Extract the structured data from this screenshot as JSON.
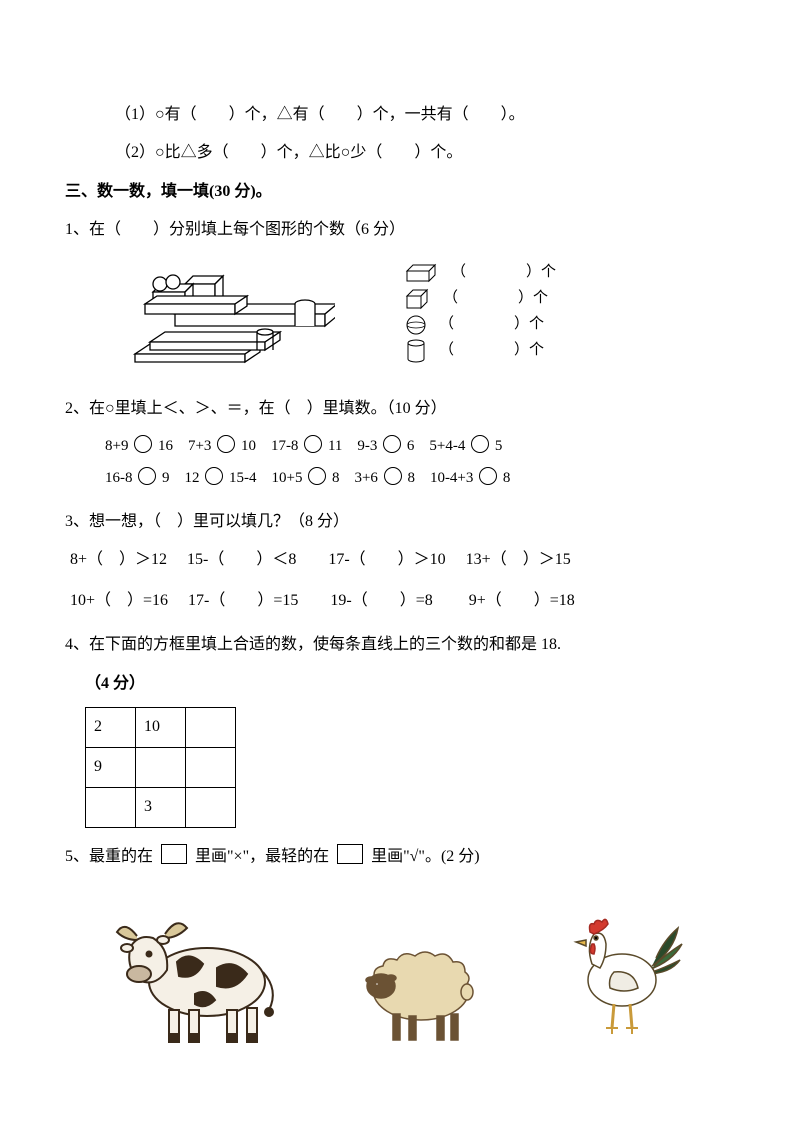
{
  "top": {
    "line1": "（1）○有（　　）个，△有（　　）个，一共有（　　）。",
    "line2": "（2）○比△多（　　）个，△比○少（　　）个。"
  },
  "section3": {
    "title": "三、数一数，填一填(30 分)。",
    "q1": {
      "text": "1、在（　　）分别填上每个图形的个数（6 分）",
      "shapes": [
        {
          "name": "cuboid-icon",
          "label": "（　　　　）个"
        },
        {
          "name": "cube-icon",
          "label": "（　　　　）个"
        },
        {
          "name": "sphere-icon",
          "label": "（　　　　）个"
        },
        {
          "name": "cylinder-icon",
          "label": "（　　　　）个"
        }
      ]
    },
    "q2": {
      "text": "2、在○里填上＜、＞、＝，在（　）里填数。（10 分）",
      "row1": [
        {
          "l": "8+9",
          "r": "16"
        },
        {
          "l": "7+3",
          "r": "10"
        },
        {
          "l": "17-8",
          "r": "11"
        },
        {
          "l": "9-3",
          "r": "6"
        },
        {
          "l": "5+4-4",
          "r": "5"
        }
      ],
      "row2": [
        {
          "l": "16-8",
          "r": "9"
        },
        {
          "l": "12",
          "r": "15-4"
        },
        {
          "l": "10+5",
          "r": "8"
        },
        {
          "l": "3+6",
          "r": "8"
        },
        {
          "l": "10-4+3",
          "r": "8"
        }
      ]
    },
    "q3": {
      "text": "3、想一想，（　）里可以填几？（8 分）",
      "row1": "8+（　）＞12　 15-（　　）＜8　　17-（　　）＞10　 13+（　）＞15",
      "row2": "10+（　）=16　 17-（　　）=15　　19-（　　）=8　　 9+（　　）=18"
    },
    "q4": {
      "text": "4、在下面的方框里填上合适的数，使每条直线上的三个数的和都是 18.",
      "points": "（4 分）",
      "grid": [
        [
          "2",
          "10",
          ""
        ],
        [
          "9",
          "",
          ""
        ],
        [
          "",
          "3",
          ""
        ]
      ]
    },
    "q5": {
      "prefix": "5、最重的在",
      "mid": "里画\"×\"，最轻的在",
      "suffix": "里画\"√\"。(2 分)"
    }
  },
  "colors": {
    "text": "#000000",
    "bg": "#ffffff",
    "cow_body": "#f5f0e6",
    "cow_spot": "#3a2a1a",
    "cow_horn": "#d9c89a",
    "sheep_body": "#e8d9b0",
    "sheep_face": "#6b5234",
    "rooster_body": "#ffffff",
    "rooster_comb": "#d33a2f",
    "rooster_tail1": "#2a4a2a",
    "rooster_tail2": "#3a6a3a",
    "rooster_beak": "#e6b84a",
    "rooster_leg": "#c99a3a"
  }
}
